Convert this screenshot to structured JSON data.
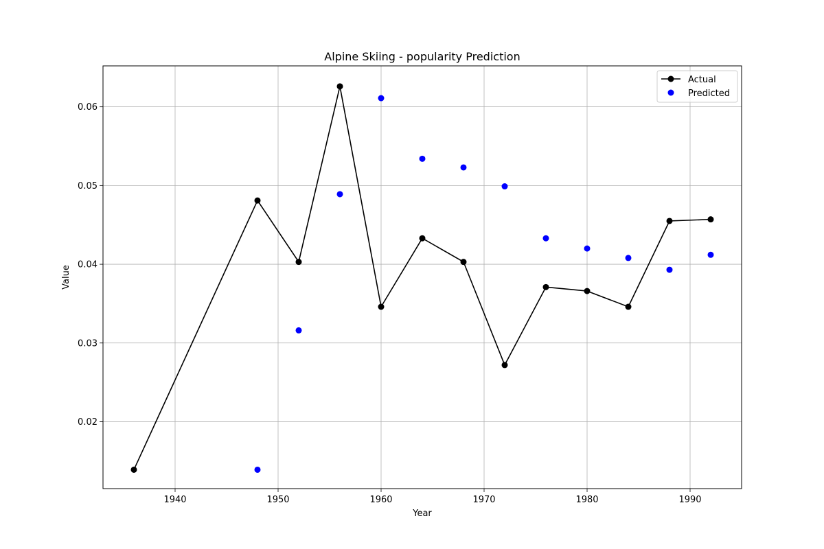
{
  "chart_data": {
    "type": "line",
    "title": "Alpine Skiing - popularity Prediction",
    "xlabel": "Year",
    "ylabel": "Value",
    "xlim": [
      1933,
      1995
    ],
    "ylim": [
      0.0115,
      0.0652
    ],
    "xticks": [
      1940,
      1950,
      1960,
      1970,
      1980,
      1990
    ],
    "yticks": [
      0.02,
      0.03,
      0.04,
      0.05,
      0.06
    ],
    "ytick_labels": [
      "0.02",
      "0.03",
      "0.04",
      "0.05",
      "0.06"
    ],
    "grid": true,
    "legend_position": "top-right",
    "series": [
      {
        "name": "Actual",
        "style": "line-with-markers",
        "color": "#000000",
        "x": [
          1936,
          1948,
          1952,
          1956,
          1960,
          1964,
          1968,
          1972,
          1976,
          1980,
          1984,
          1988,
          1992
        ],
        "values": [
          0.0139,
          0.0481,
          0.0403,
          0.0626,
          0.0346,
          0.0433,
          0.0403,
          0.0272,
          0.0371,
          0.0366,
          0.0346,
          0.0455,
          0.0457
        ]
      },
      {
        "name": "Predicted",
        "style": "scatter",
        "color": "#0000ff",
        "x": [
          1948,
          1952,
          1956,
          1960,
          1964,
          1968,
          1972,
          1976,
          1980,
          1984,
          1988,
          1992
        ],
        "values": [
          0.0139,
          0.0316,
          0.0489,
          0.0611,
          0.0534,
          0.0523,
          0.0499,
          0.0433,
          0.042,
          0.0408,
          0.0393,
          0.0412
        ]
      }
    ]
  }
}
